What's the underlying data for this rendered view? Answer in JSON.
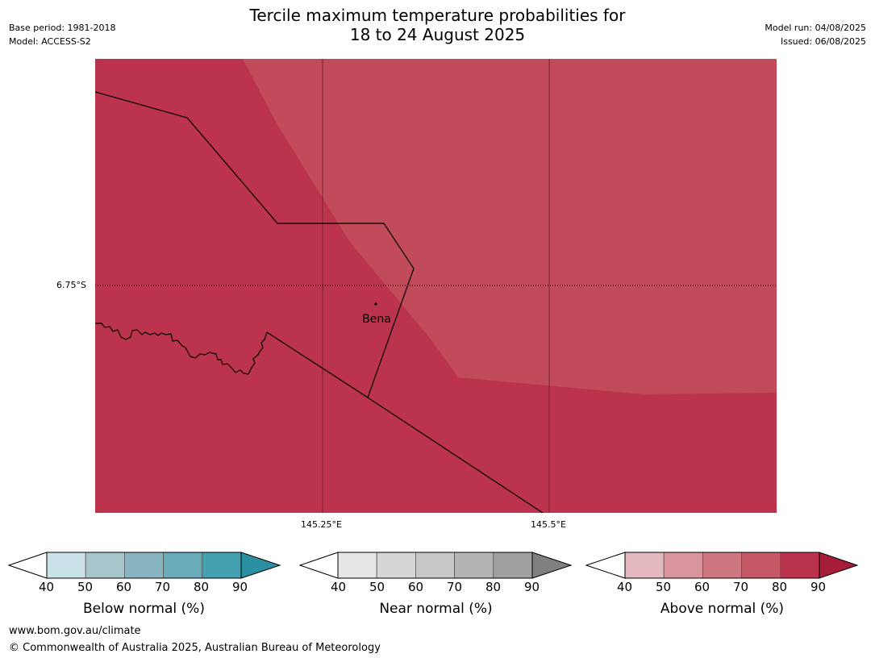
{
  "title": {
    "line1": "Tercile maximum temperature probabilities for",
    "line2": "18 to 24 August 2025"
  },
  "meta_left": {
    "base_period": "Base period: 1981-2018",
    "model": "Model: ACCESS-S2"
  },
  "meta_right": {
    "model_run": "Model run: 04/08/2025",
    "issued": "Issued: 06/08/2025"
  },
  "map": {
    "place_label": "Bena",
    "latitude_labels": [
      "6.75°S"
    ],
    "longitude_labels": [
      "145.25°E",
      "145.5°E"
    ],
    "colors": {
      "above_80": "#bb334c",
      "above_70": "#c24b59"
    }
  },
  "colorbars": [
    {
      "label": "Below normal (%)",
      "ticks": [
        "40",
        "50",
        "60",
        "70",
        "80",
        "90"
      ],
      "colors": [
        "#cae3e8",
        "#a6c6cc",
        "#89b5c1",
        "#6aabb9",
        "#45a0b0",
        "#2a8fa0"
      ]
    },
    {
      "label": "Near normal (%)",
      "ticks": [
        "40",
        "50",
        "60",
        "70",
        "80",
        "90"
      ],
      "colors": [
        "#e5e5e5",
        "#d6d6d6",
        "#c8c8c8",
        "#b4b4b4",
        "#a0a0a0",
        "#808080"
      ]
    },
    {
      "label": "Above normal (%)",
      "ticks": [
        "40",
        "50",
        "60",
        "70",
        "80",
        "90"
      ],
      "colors": [
        "#e3b8be",
        "#d8959d",
        "#ce7780",
        "#c45865",
        "#bb334c",
        "#a61c39"
      ]
    }
  ],
  "footer": {
    "url": "www.bom.gov.au/climate",
    "copyright": "© Commonwealth of Australia 2025, Australian Bureau of Meteorology"
  }
}
